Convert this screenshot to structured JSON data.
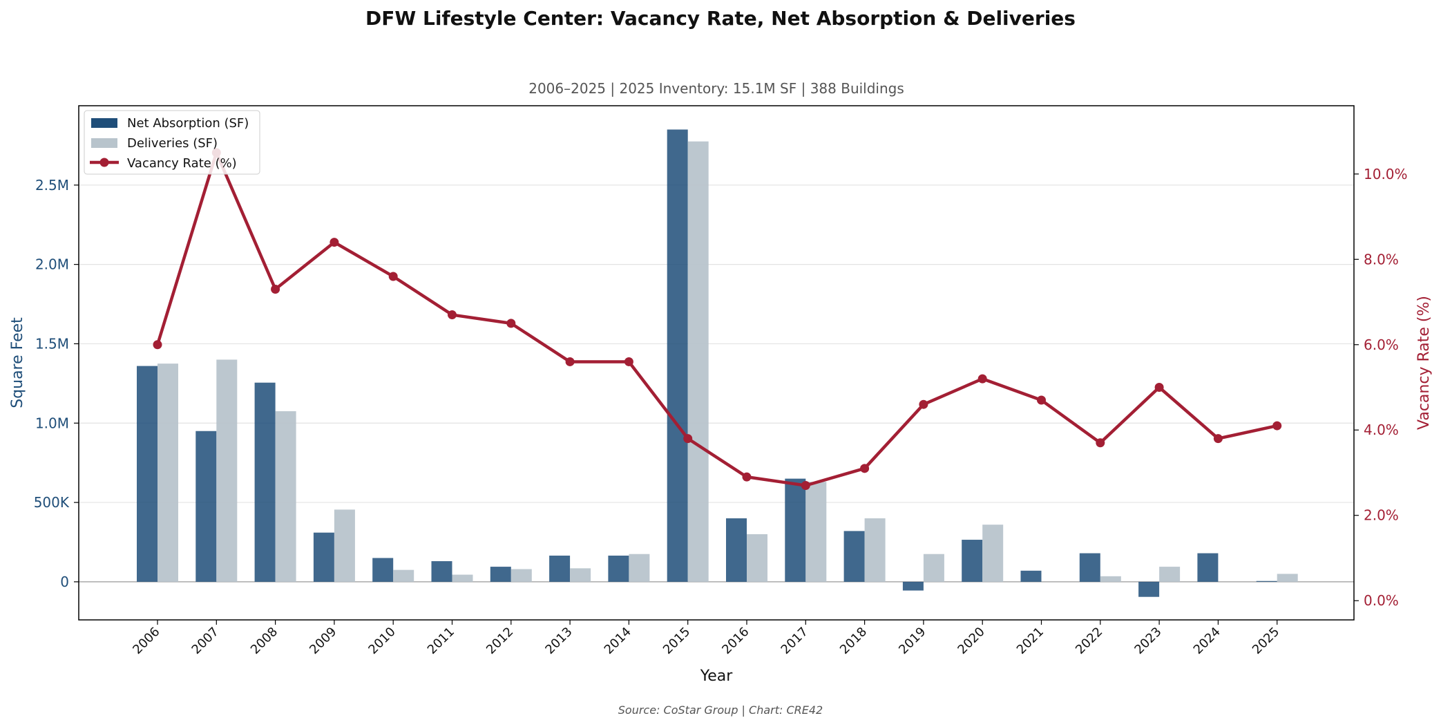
{
  "title": "DFW Lifestyle Center: Vacancy Rate, Net Absorption & Deliveries",
  "subtitle": "2006–2025  |  2025 Inventory: 15.1M SF  |  388 Buildings",
  "source": "Source: CoStar Group  |  Chart: CRE42",
  "colors": {
    "absorption": "#1f4e79",
    "deliveries": "#b8c4cc",
    "vacancy": "#a31f34"
  },
  "chart_data": {
    "type": "bar",
    "categories": [
      "2006",
      "2007",
      "2008",
      "2009",
      "2010",
      "2011",
      "2012",
      "2013",
      "2014",
      "2015",
      "2016",
      "2017",
      "2018",
      "2019",
      "2020",
      "2021",
      "2022",
      "2023",
      "2024",
      "2025"
    ],
    "series": [
      {
        "name": "Net Absorption (SF)",
        "type": "bar",
        "axis": "left",
        "values": [
          1360000,
          950000,
          1255000,
          310000,
          150000,
          130000,
          95000,
          165000,
          165000,
          2850000,
          400000,
          650000,
          320000,
          -55000,
          265000,
          70000,
          180000,
          -95000,
          180000,
          5000
        ]
      },
      {
        "name": "Deliveries (SF)",
        "type": "bar",
        "axis": "left",
        "values": [
          1375000,
          1400000,
          1075000,
          455000,
          75000,
          45000,
          80000,
          85000,
          175000,
          2775000,
          300000,
          630000,
          400000,
          175000,
          360000,
          0,
          35000,
          95000,
          0,
          50000
        ]
      },
      {
        "name": "Vacancy Rate (%)",
        "type": "line",
        "axis": "right",
        "values": [
          6.0,
          10.5,
          7.3,
          8.4,
          7.6,
          6.7,
          6.5,
          5.6,
          5.6,
          3.8,
          2.9,
          2.7,
          3.1,
          4.6,
          5.2,
          4.7,
          3.7,
          5.0,
          3.8,
          4.1
        ]
      }
    ],
    "xlabel": "Year",
    "ylabel": "Square Feet",
    "y2label": "Vacancy Rate (%)",
    "ylim": [
      -240000,
      3000000
    ],
    "y2lim": [
      -0.45,
      11.6
    ],
    "yticks": [
      0,
      500000,
      1000000,
      1500000,
      2000000,
      2500000
    ],
    "yticklabels": [
      "0",
      "500K",
      "1.0M",
      "1.5M",
      "2.0M",
      "2.5M"
    ],
    "y2ticks": [
      0,
      2,
      4,
      6,
      8,
      10
    ],
    "y2ticklabels": [
      "0.0%",
      "2.0%",
      "4.0%",
      "6.0%",
      "8.0%",
      "10.0%"
    ],
    "grid": true,
    "legend_position": "top-left"
  }
}
